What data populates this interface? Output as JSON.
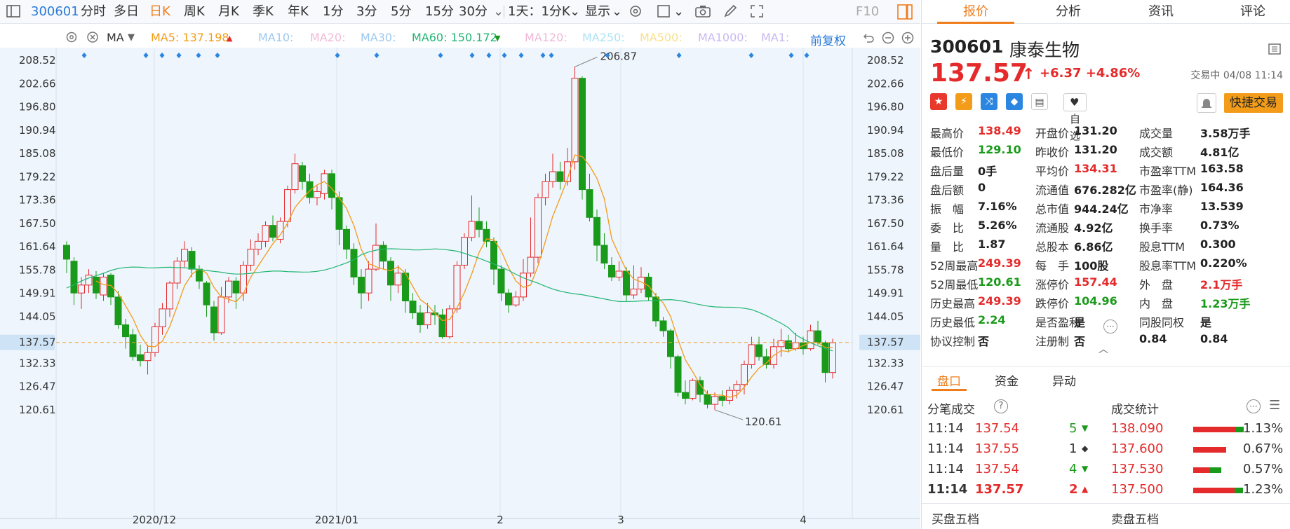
{
  "toolbar": {
    "code": "300601",
    "periods": [
      "分时",
      "多日",
      "日K",
      "周K",
      "月K",
      "季K",
      "年K",
      "1分",
      "3分",
      "5分",
      "15分",
      "30分"
    ],
    "active_period": "日K",
    "kline_setting": "1天：1分K",
    "display_label": "显示",
    "f10_label": "F10"
  },
  "ma_bar": {
    "indicator": "MA",
    "ma5": "MA5: 137.198",
    "ma10": "MA10:",
    "ma20": "MA20:",
    "ma30": "MA30:",
    "ma60": "MA60: 150.172",
    "ma120": "MA120:",
    "ma250": "MA250:",
    "ma500": "MA500:",
    "ma1000": "MA1000:",
    "ma1": "MA1:",
    "adjust": "前复权"
  },
  "chart_data": {
    "type": "candlestick",
    "y_ticks": [
      "208.52",
      "202.66",
      "196.80",
      "190.94",
      "185.08",
      "179.22",
      "173.36",
      "167.50",
      "161.64",
      "155.78",
      "149.91",
      "144.05",
      "137.57",
      "132.33",
      "126.47",
      "120.61"
    ],
    "ylim": [
      116.0,
      213.0
    ],
    "x_labels": [
      "2020/12",
      "2021/01",
      "2",
      "3",
      "4"
    ],
    "current_price": "137.57",
    "max_label": "206.87",
    "min_label": "120.61",
    "candles": [
      [
        162.0,
        158.5,
        163.0,
        155.0
      ],
      [
        158.0,
        150.0,
        159.0,
        147.0
      ],
      [
        150.0,
        152.0,
        154.0,
        146.0
      ],
      [
        152.0,
        154.5,
        156.0,
        150.0
      ],
      [
        154.0,
        150.0,
        155.5,
        148.5
      ],
      [
        149.5,
        154.0,
        155.0,
        148.0
      ],
      [
        154.5,
        149.0,
        155.0,
        147.0
      ],
      [
        149.0,
        142.0,
        150.5,
        141.0
      ],
      [
        142.0,
        139.0,
        143.5,
        136.0
      ],
      [
        139.5,
        134.0,
        141.0,
        133.0
      ],
      [
        134.5,
        133.0,
        137.0,
        131.5
      ],
      [
        133.0,
        135.0,
        137.0,
        129.5
      ],
      [
        135.0,
        141.5,
        142.5,
        134.0
      ],
      [
        141.5,
        146.0,
        147.5,
        139.5
      ],
      [
        146.0,
        152.5,
        153.0,
        144.0
      ],
      [
        152.5,
        158.0,
        159.0,
        151.0
      ],
      [
        158.0,
        161.0,
        163.0,
        156.5
      ],
      [
        160.5,
        156.0,
        161.5,
        154.0
      ],
      [
        156.0,
        153.0,
        157.0,
        151.0
      ],
      [
        152.5,
        147.0,
        153.0,
        144.0
      ],
      [
        146.5,
        140.0,
        148.0,
        138.0
      ],
      [
        140.0,
        149.0,
        151.5,
        139.5
      ],
      [
        149.0,
        153.0,
        154.0,
        147.5
      ],
      [
        153.0,
        150.0,
        154.0,
        146.0
      ],
      [
        150.0,
        157.0,
        158.0,
        148.0
      ],
      [
        157.0,
        161.0,
        163.5,
        155.5
      ],
      [
        161.0,
        163.0,
        165.0,
        159.5
      ],
      [
        163.0,
        167.0,
        168.0,
        161.5
      ],
      [
        167.0,
        164.0,
        169.5,
        163.0
      ],
      [
        163.5,
        168.0,
        169.0,
        162.5
      ],
      [
        168.0,
        176.0,
        177.0,
        166.5
      ],
      [
        176.0,
        182.5,
        185.0,
        175.0
      ],
      [
        182.0,
        178.0,
        183.0,
        176.0
      ],
      [
        178.0,
        174.0,
        180.0,
        172.5
      ],
      [
        174.0,
        175.5,
        177.0,
        172.0
      ],
      [
        175.0,
        180.0,
        181.0,
        173.5
      ],
      [
        180.0,
        174.0,
        181.0,
        171.0
      ],
      [
        174.0,
        166.0,
        175.5,
        162.0
      ],
      [
        166.0,
        161.0,
        167.0,
        158.5
      ],
      [
        161.0,
        154.0,
        162.5,
        152.0
      ],
      [
        154.0,
        150.0,
        156.0,
        146.0
      ],
      [
        150.0,
        156.0,
        158.0,
        148.0
      ],
      [
        156.0,
        162.0,
        167.5,
        155.5
      ],
      [
        162.0,
        158.0,
        163.0,
        156.0
      ],
      [
        158.0,
        152.0,
        159.0,
        148.0
      ],
      [
        152.0,
        155.0,
        157.0,
        150.0
      ],
      [
        155.0,
        148.0,
        156.0,
        145.0
      ],
      [
        148.0,
        145.0,
        150.0,
        143.5
      ],
      [
        145.0,
        142.0,
        147.0,
        140.0
      ],
      [
        142.0,
        145.0,
        147.5,
        141.0
      ],
      [
        145.0,
        144.5,
        147.0,
        142.0
      ],
      [
        144.5,
        139.0,
        146.0,
        138.5
      ],
      [
        139.0,
        146.0,
        147.0,
        138.5
      ],
      [
        146.0,
        157.0,
        158.0,
        145.0
      ],
      [
        157.0,
        164.0,
        165.0,
        156.0
      ],
      [
        164.0,
        168.0,
        174.5,
        163.0
      ],
      [
        168.0,
        166.0,
        171.5,
        164.0
      ],
      [
        166.0,
        163.0,
        168.0,
        161.5
      ],
      [
        163.0,
        156.0,
        164.0,
        152.0
      ],
      [
        156.0,
        150.0,
        157.0,
        148.0
      ],
      [
        150.0,
        147.0,
        151.0,
        145.0
      ],
      [
        147.0,
        149.0,
        150.5,
        146.5
      ],
      [
        149.0,
        155.0,
        158.5,
        148.0
      ],
      [
        155.0,
        159.0,
        169.0,
        154.0
      ],
      [
        159.0,
        174.0,
        175.0,
        157.5
      ],
      [
        174.0,
        178.0,
        180.0,
        172.0
      ],
      [
        178.0,
        180.5,
        185.0,
        176.5
      ],
      [
        180.5,
        178.0,
        183.0,
        176.0
      ],
      [
        178.0,
        183.0,
        186.5,
        177.0
      ],
      [
        183.0,
        204.0,
        207.0,
        181.0
      ],
      [
        204.0,
        176.0,
        204.5,
        173.5
      ],
      [
        176.0,
        169.0,
        180.0,
        168.0
      ],
      [
        169.0,
        162.0,
        171.0,
        158.0
      ],
      [
        162.0,
        157.5,
        165.0,
        156.0
      ],
      [
        157.0,
        154.0,
        159.0,
        153.0
      ],
      [
        154.0,
        155.5,
        158.0,
        153.0
      ],
      [
        155.5,
        149.5,
        156.5,
        148.0
      ],
      [
        149.5,
        151.0,
        157.0,
        148.5
      ],
      [
        151.0,
        154.0,
        156.5,
        150.0
      ],
      [
        154.0,
        149.0,
        155.0,
        148.0
      ],
      [
        149.0,
        143.0,
        150.0,
        141.5
      ],
      [
        143.0,
        140.5,
        144.0,
        139.0
      ],
      [
        140.5,
        134.0,
        141.0,
        131.0
      ],
      [
        134.0,
        125.0,
        134.5,
        124.0
      ],
      [
        125.0,
        123.5,
        128.0,
        122.0
      ],
      [
        123.5,
        128.0,
        128.5,
        123.0
      ],
      [
        128.0,
        124.5,
        129.0,
        122.5
      ],
      [
        124.5,
        122.0,
        125.5,
        121.0
      ],
      [
        122.0,
        124.0,
        125.0,
        120.6
      ],
      [
        124.0,
        123.0,
        125.5,
        121.5
      ],
      [
        123.0,
        125.5,
        126.5,
        122.0
      ],
      [
        125.5,
        127.0,
        128.0,
        123.5
      ],
      [
        127.0,
        132.0,
        133.0,
        124.5
      ],
      [
        132.0,
        137.0,
        139.0,
        131.0
      ],
      [
        137.0,
        134.0,
        139.0,
        133.0
      ],
      [
        134.0,
        132.0,
        136.0,
        131.0
      ],
      [
        132.0,
        136.5,
        138.5,
        131.0
      ],
      [
        136.5,
        138.0,
        141.0,
        134.0
      ],
      [
        138.0,
        136.0,
        139.5,
        135.0
      ],
      [
        136.0,
        137.5,
        140.0,
        135.5
      ],
      [
        137.5,
        136.0,
        139.0,
        134.5
      ],
      [
        136.0,
        140.5,
        142.0,
        135.5
      ],
      [
        140.5,
        137.5,
        143.0,
        137.0
      ],
      [
        137.5,
        130.0,
        138.0,
        127.5
      ],
      [
        130.0,
        137.5,
        138.5,
        128.5
      ]
    ]
  },
  "right_panel": {
    "tabs": [
      "报价",
      "分析",
      "资讯",
      "评论"
    ],
    "active_tab": "报价",
    "code": "300601",
    "name": "康泰生物",
    "price": "137.57",
    "change": "+6.37",
    "change_pct": "+4.86%",
    "status": "交易中 04/08 11:14",
    "watch_label": "自选",
    "trade_label": "快捷交易",
    "quotes": [
      [
        [
          "最高价",
          "138.49",
          "red"
        ],
        [
          "开盘价",
          "131.20",
          "black"
        ],
        [
          "成交量",
          "3.58万手",
          "black"
        ]
      ],
      [
        [
          "最低价",
          "129.10",
          "green"
        ],
        [
          "昨收价",
          "131.20",
          "black"
        ],
        [
          "成交额",
          "4.81亿",
          "black"
        ]
      ],
      [
        [
          "盘后量",
          "0手",
          "black"
        ],
        [
          "平均价",
          "134.31",
          "red"
        ],
        [
          "市盈率TTM",
          "163.58",
          "black"
        ]
      ],
      [
        [
          "盘后额",
          "0",
          "black"
        ],
        [
          "流通值",
          "676.282亿",
          "black"
        ],
        [
          "市盈率(静)",
          "164.36",
          "black"
        ]
      ],
      [
        [
          "振　幅",
          "7.16%",
          "black"
        ],
        [
          "总市值",
          "944.24亿",
          "black"
        ],
        [
          "市净率",
          "13.539",
          "black"
        ]
      ],
      [
        [
          "委　比",
          "5.26%",
          "black"
        ],
        [
          "流通股",
          "4.92亿",
          "black"
        ],
        [
          "换手率",
          "0.73%",
          "black"
        ]
      ],
      [
        [
          "量　比",
          "1.87",
          "black"
        ],
        [
          "总股本",
          "6.86亿",
          "black"
        ],
        [
          "股息TTM",
          "0.300",
          "black"
        ]
      ],
      [
        [
          "52周最高",
          "249.39",
          "red"
        ],
        [
          "每　手",
          "100股",
          "black"
        ],
        [
          "股息率TTM",
          "0.220%",
          "black"
        ]
      ],
      [
        [
          "52周最低",
          "120.61",
          "green"
        ],
        [
          "涨停价",
          "157.44",
          "red"
        ],
        [
          "外　盘",
          "2.1万手",
          "red"
        ]
      ],
      [
        [
          "历史最高",
          "249.39",
          "red"
        ],
        [
          "跌停价",
          "104.96",
          "green"
        ],
        [
          "内　盘",
          "1.23万手",
          "green"
        ]
      ],
      [
        [
          "历史最低",
          "2.24",
          "green"
        ],
        [
          "是否盈利",
          "是",
          "black"
        ],
        [
          "同股同权",
          "是",
          "black"
        ]
      ],
      [
        [
          "协议控制",
          "否",
          "black"
        ],
        [
          "注册制",
          "否",
          "black"
        ],
        [
          "0.84",
          "0.84",
          "black"
        ]
      ]
    ],
    "sub_tabs": [
      "盘口",
      "资金",
      "异动"
    ],
    "active_sub_tab": "盘口",
    "ticks_title": "分笔成交",
    "stats_title": "成交统计",
    "ticks": [
      {
        "time": "11:14",
        "price": "137.54",
        "vol": "5",
        "dir": "down"
      },
      {
        "time": "11:14",
        "price": "137.55",
        "vol": "1",
        "dir": "flat"
      },
      {
        "time": "11:14",
        "price": "137.54",
        "vol": "4",
        "dir": "down"
      },
      {
        "time": "11:14",
        "price": "137.57",
        "vol": "2",
        "dir": "up"
      }
    ],
    "stats": [
      {
        "price": "138.090",
        "pct": "1.13%",
        "red": 0.78,
        "green": 0.14
      },
      {
        "price": "137.600",
        "pct": "0.67%",
        "red": 0.6,
        "green": 0.0
      },
      {
        "price": "137.530",
        "pct": "0.57%",
        "red": 0.3,
        "green": 0.22
      },
      {
        "price": "137.500",
        "pct": "1.23%",
        "red": 0.75,
        "green": 0.15
      }
    ],
    "bottom_tabs": [
      "买盘五档",
      "卖盘五档"
    ]
  },
  "colors": {
    "up": "#e42a2a",
    "down": "#1a9a1a",
    "accent": "#f07d1b",
    "ma5": "#f39c19",
    "ma60": "#22b573"
  }
}
